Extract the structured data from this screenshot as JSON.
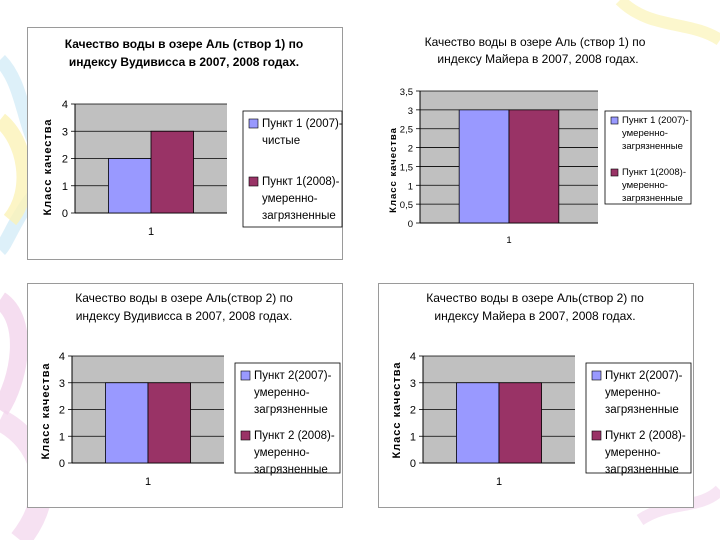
{
  "colors": {
    "series_2007": "#9999ff",
    "series_2008": "#993366",
    "plot_bg": "#c0c0c0",
    "frame": "#9a9a9a",
    "deco_pink": "#f2d4ec",
    "deco_yellow": "#fbf3b8",
    "deco_blue": "#cfe9f7"
  },
  "chart_data": [
    {
      "type": "bar",
      "id": "chart-tl",
      "title": [
        "Качество воды в озере Аль (створ 1) по",
        "индексу Вудивисса в 2007, 2008 годах."
      ],
      "ylabel": "Класс качества",
      "xlabel": "",
      "categories": [
        "1"
      ],
      "ylim": [
        0,
        4
      ],
      "yticks": [
        "0",
        "1",
        "2",
        "3",
        "4"
      ],
      "series": [
        {
          "name": [
            "Пункт 1 (2007)-",
            "чистые"
          ],
          "values": [
            2
          ]
        },
        {
          "name": [
            "Пункт 1(2008)-",
            "умеренно-",
            "загрязненные"
          ],
          "values": [
            3
          ]
        }
      ]
    },
    {
      "type": "bar",
      "id": "chart-tr",
      "title": [
        "Качество воды  в озере Аль (створ 1) по",
        "индексу Майера в 2007, 2008 годах."
      ],
      "ylabel": "Класс качества",
      "xlabel": "",
      "categories": [
        "1"
      ],
      "ylim": [
        0,
        3.5
      ],
      "yticks": [
        "0",
        "0,5",
        "1",
        "1,5",
        "2",
        "2,5",
        "3",
        "3,5"
      ],
      "series": [
        {
          "name": [
            "Пункт 1 (2007)-",
            "умеренно-",
            "загрязненные"
          ],
          "values": [
            3
          ]
        },
        {
          "name": [
            "Пункт 1(2008)-",
            "умеренно-",
            "загрязненные"
          ],
          "values": [
            3
          ]
        }
      ]
    },
    {
      "type": "bar",
      "id": "chart-bl",
      "title": [
        "Качество воды в озере Аль(створ 2) по",
        "индексу Вудивисса в 2007, 2008 годах."
      ],
      "ylabel": "Класс качества",
      "xlabel": "",
      "categories": [
        "1"
      ],
      "ylim": [
        0,
        4
      ],
      "yticks": [
        "0",
        "1",
        "2",
        "3",
        "4"
      ],
      "series": [
        {
          "name": [
            "Пункт 2(2007)-",
            "умеренно-",
            "загрязненные"
          ],
          "values": [
            3
          ]
        },
        {
          "name": [
            "Пункт 2 (2008)-",
            "умеренно-",
            "загрязненные"
          ],
          "values": [
            3
          ]
        }
      ]
    },
    {
      "type": "bar",
      "id": "chart-br",
      "title": [
        "Качество воды в озере Аль(створ 2) по",
        "индексу Майера в 2007, 2008 годах."
      ],
      "ylabel": "Класс качества",
      "xlabel": "",
      "categories": [
        "1"
      ],
      "ylim": [
        0,
        4
      ],
      "yticks": [
        "0",
        "1",
        "2",
        "3",
        "4"
      ],
      "series": [
        {
          "name": [
            "Пункт 2(2007)-",
            "умеренно-",
            "загрязненные"
          ],
          "values": [
            3
          ]
        },
        {
          "name": [
            "Пункт 2 (2008)-",
            "умеренно-",
            "загрязненные"
          ],
          "values": [
            3
          ]
        }
      ]
    }
  ]
}
